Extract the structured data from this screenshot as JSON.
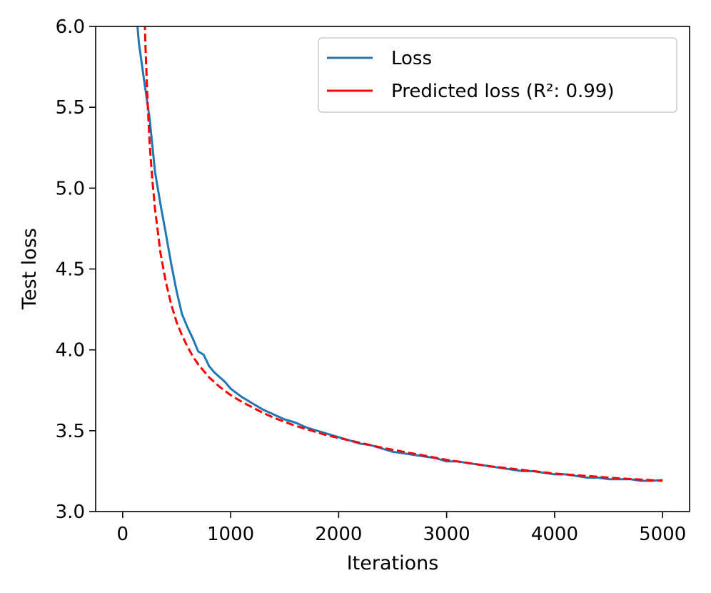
{
  "chart_data": {
    "type": "line",
    "title": "",
    "xlabel": "Iterations",
    "ylabel": "Test loss",
    "xlim": [
      -250,
      5250
    ],
    "ylim": [
      3.0,
      6.0
    ],
    "xticks": [
      0,
      1000,
      2000,
      3000,
      4000,
      5000
    ],
    "xtick_labels": [
      "0",
      "1000",
      "2000",
      "3000",
      "4000",
      "5000"
    ],
    "yticks": [
      3.0,
      3.5,
      4.0,
      4.5,
      5.0,
      5.5,
      6.0
    ],
    "ytick_labels": [
      "3.0",
      "3.5",
      "4.0",
      "4.5",
      "5.0",
      "5.5",
      "6.0"
    ],
    "grid": false,
    "legend_position": "top-right",
    "series": [
      {
        "name": "Loss",
        "color": "#1f77b4",
        "style": "solid",
        "x": [
          100,
          150,
          200,
          250,
          300,
          350,
          400,
          450,
          500,
          550,
          600,
          650,
          700,
          750,
          800,
          850,
          900,
          950,
          1000,
          1100,
          1200,
          1300,
          1400,
          1500,
          1600,
          1700,
          1800,
          1900,
          2000,
          2100,
          2200,
          2300,
          2400,
          2500,
          2600,
          2700,
          2800,
          2900,
          3000,
          3100,
          3200,
          3300,
          3400,
          3500,
          3600,
          3700,
          3800,
          3900,
          4000,
          4100,
          4200,
          4300,
          4400,
          4500,
          4600,
          4700,
          4800,
          4900,
          5000
        ],
        "y": [
          6.3,
          5.9,
          5.66,
          5.43,
          5.1,
          4.9,
          4.72,
          4.53,
          4.36,
          4.22,
          4.14,
          4.07,
          3.99,
          3.97,
          3.9,
          3.86,
          3.83,
          3.8,
          3.76,
          3.71,
          3.67,
          3.63,
          3.6,
          3.57,
          3.55,
          3.52,
          3.5,
          3.48,
          3.46,
          3.44,
          3.42,
          3.41,
          3.39,
          3.37,
          3.36,
          3.35,
          3.34,
          3.33,
          3.31,
          3.31,
          3.3,
          3.29,
          3.28,
          3.27,
          3.26,
          3.25,
          3.25,
          3.24,
          3.23,
          3.23,
          3.22,
          3.21,
          3.21,
          3.2,
          3.2,
          3.2,
          3.19,
          3.19,
          3.195
        ]
      },
      {
        "name": "Predicted loss (R²: 0.99)",
        "color": "#ff0000",
        "style": "dashed",
        "x": [
          190,
          210,
          230,
          250,
          275,
          300,
          350,
          400,
          450,
          500,
          550,
          600,
          650,
          700,
          750,
          800,
          900,
          1000,
          1100,
          1200,
          1300,
          1400,
          1500,
          1600,
          1700,
          1800,
          1900,
          2000,
          2200,
          2400,
          2600,
          2800,
          3000,
          3200,
          3400,
          3600,
          3800,
          4000,
          4200,
          4400,
          4600,
          4800,
          5000
        ],
        "y": [
          6.45,
          5.9,
          5.55,
          5.28,
          5.05,
          4.87,
          4.6,
          4.42,
          4.28,
          4.17,
          4.09,
          4.02,
          3.96,
          3.91,
          3.87,
          3.83,
          3.77,
          3.72,
          3.68,
          3.645,
          3.61,
          3.58,
          3.555,
          3.53,
          3.51,
          3.49,
          3.47,
          3.455,
          3.425,
          3.395,
          3.37,
          3.345,
          3.32,
          3.3,
          3.28,
          3.265,
          3.25,
          3.235,
          3.225,
          3.215,
          3.205,
          3.198,
          3.19
        ]
      }
    ]
  }
}
